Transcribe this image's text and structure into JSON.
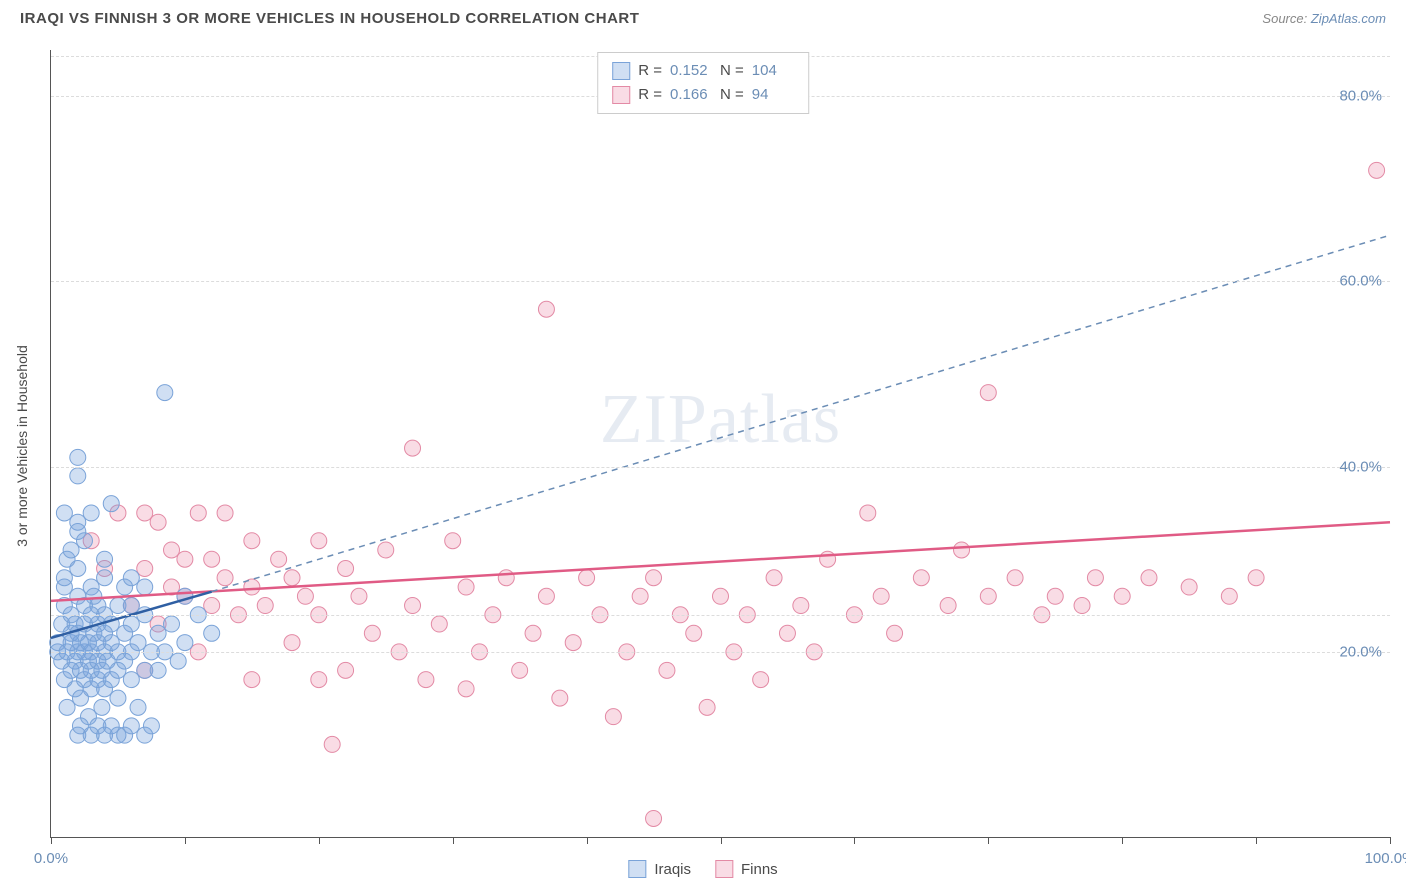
{
  "header": {
    "title": "IRAQI VS FINNISH 3 OR MORE VEHICLES IN HOUSEHOLD CORRELATION CHART",
    "source_label": "Source:",
    "source_name": "ZipAtlas.com"
  },
  "chart": {
    "type": "scatter",
    "ylabel": "3 or more Vehicles in Household",
    "watermark": "ZIPatlas",
    "xlim": [
      0,
      100
    ],
    "ylim": [
      0,
      85
    ],
    "yticks": [
      {
        "value": 20,
        "label": "20.0%"
      },
      {
        "value": 40,
        "label": "40.0%"
      },
      {
        "value": 60,
        "label": "60.0%"
      },
      {
        "value": 80,
        "label": "80.0%"
      }
    ],
    "y_grid_extra": [
      24
    ],
    "xtick_positions": [
      0,
      10,
      20,
      30,
      40,
      50,
      60,
      70,
      80,
      90,
      100
    ],
    "xtick_labels": {
      "0": "0.0%",
      "100": "100.0%"
    },
    "colors": {
      "iraqi_fill": "rgba(121,163,220,0.35)",
      "iraqi_stroke": "#7aa3d8",
      "finn_fill": "rgba(236,140,168,0.30)",
      "finn_stroke": "#e38aa5",
      "iraqi_line": "#2f5fa3",
      "iraqi_line_dash": "#6b8db5",
      "finn_line": "#e05b85",
      "grid": "#dcdcdc",
      "axis": "#555555",
      "tick_text": "#6b8db5",
      "text": "#4a4a4a",
      "bg": "#ffffff"
    },
    "marker_radius": 8,
    "legend_stats": [
      {
        "series": "iraqi",
        "R": "0.152",
        "N": "104"
      },
      {
        "series": "finn",
        "R": "0.166",
        "N": "94"
      }
    ],
    "legend_bottom": [
      {
        "series": "iraqi",
        "label": "Iraqis"
      },
      {
        "series": "finn",
        "label": "Finns"
      }
    ],
    "trend_lines": {
      "iraqi_solid": {
        "x1": 0,
        "y1": 21.5,
        "x2": 12,
        "y2": 26.5
      },
      "iraqi_dashed": {
        "x1": 12,
        "y1": 26.5,
        "x2": 100,
        "y2": 65
      },
      "finn_solid": {
        "x1": 0,
        "y1": 25.5,
        "x2": 100,
        "y2": 34
      }
    },
    "series": {
      "iraqi": [
        [
          0.5,
          20
        ],
        [
          0.5,
          21
        ],
        [
          0.8,
          19
        ],
        [
          0.8,
          23
        ],
        [
          1,
          17
        ],
        [
          1,
          25
        ],
        [
          1,
          27
        ],
        [
          1,
          28
        ],
        [
          1.2,
          20
        ],
        [
          1.2,
          14
        ],
        [
          1.2,
          30
        ],
        [
          1.5,
          18
        ],
        [
          1.5,
          22
        ],
        [
          1.5,
          24
        ],
        [
          1.5,
          21
        ],
        [
          1.8,
          16
        ],
        [
          1.8,
          19
        ],
        [
          1.8,
          23
        ],
        [
          2,
          11
        ],
        [
          2,
          20
        ],
        [
          2,
          22
        ],
        [
          2,
          26
        ],
        [
          2,
          29
        ],
        [
          2,
          34
        ],
        [
          2,
          41
        ],
        [
          2,
          39
        ],
        [
          2.2,
          12
        ],
        [
          2.2,
          15
        ],
        [
          2.2,
          18
        ],
        [
          2.2,
          21
        ],
        [
          2.5,
          17
        ],
        [
          2.5,
          20
        ],
        [
          2.5,
          23
        ],
        [
          2.5,
          25
        ],
        [
          2.5,
          32
        ],
        [
          2.8,
          13
        ],
        [
          2.8,
          19
        ],
        [
          2.8,
          21
        ],
        [
          3,
          11
        ],
        [
          3,
          16
        ],
        [
          3,
          18
        ],
        [
          3,
          20
        ],
        [
          3,
          24
        ],
        [
          3,
          27
        ],
        [
          3.2,
          22
        ],
        [
          3.2,
          26
        ],
        [
          3.5,
          12
        ],
        [
          3.5,
          17
        ],
        [
          3.5,
          19
        ],
        [
          3.5,
          21
        ],
        [
          3.5,
          23
        ],
        [
          3.5,
          25
        ],
        [
          3.8,
          14
        ],
        [
          3.8,
          18
        ],
        [
          4,
          11
        ],
        [
          4,
          16
        ],
        [
          4,
          20
        ],
        [
          4,
          22
        ],
        [
          4,
          24
        ],
        [
          4,
          30
        ],
        [
          4.2,
          19
        ],
        [
          4.5,
          12
        ],
        [
          4.5,
          17
        ],
        [
          4.5,
          21
        ],
        [
          4.5,
          23
        ],
        [
          4.5,
          36
        ],
        [
          5,
          11
        ],
        [
          5,
          15
        ],
        [
          5,
          18
        ],
        [
          5,
          20
        ],
        [
          5,
          25
        ],
        [
          5.5,
          11
        ],
        [
          5.5,
          19
        ],
        [
          5.5,
          22
        ],
        [
          6,
          12
        ],
        [
          6,
          17
        ],
        [
          6,
          20
        ],
        [
          6,
          23
        ],
        [
          6,
          25
        ],
        [
          6.5,
          14
        ],
        [
          6.5,
          21
        ],
        [
          7,
          11
        ],
        [
          7,
          18
        ],
        [
          7,
          24
        ],
        [
          7.5,
          12
        ],
        [
          7.5,
          20
        ],
        [
          8,
          18
        ],
        [
          8,
          22
        ],
        [
          8.5,
          20
        ],
        [
          8.5,
          48
        ],
        [
          9,
          23
        ],
        [
          9.5,
          19
        ],
        [
          10,
          21
        ],
        [
          10,
          26
        ],
        [
          11,
          24
        ],
        [
          12,
          22
        ],
        [
          3,
          35
        ],
        [
          2,
          33
        ],
        [
          1.5,
          31
        ],
        [
          4,
          28
        ],
        [
          5.5,
          27
        ],
        [
          1,
          35
        ],
        [
          6,
          28
        ],
        [
          7,
          27
        ]
      ],
      "finn": [
        [
          3,
          32
        ],
        [
          4,
          29
        ],
        [
          5,
          35
        ],
        [
          6,
          25
        ],
        [
          7,
          29
        ],
        [
          7,
          35
        ],
        [
          8,
          23
        ],
        [
          8,
          34
        ],
        [
          9,
          27
        ],
        [
          9,
          31
        ],
        [
          10,
          26
        ],
        [
          10,
          30
        ],
        [
          11,
          20
        ],
        [
          11,
          35
        ],
        [
          12,
          25
        ],
        [
          12,
          30
        ],
        [
          13,
          28
        ],
        [
          13,
          35
        ],
        [
          14,
          24
        ],
        [
          15,
          32
        ],
        [
          15,
          27
        ],
        [
          16,
          25
        ],
        [
          17,
          30
        ],
        [
          18,
          21
        ],
        [
          18,
          28
        ],
        [
          19,
          26
        ],
        [
          20,
          17
        ],
        [
          20,
          24
        ],
        [
          20,
          32
        ],
        [
          21,
          10
        ],
        [
          22,
          18
        ],
        [
          22,
          29
        ],
        [
          23,
          26
        ],
        [
          24,
          22
        ],
        [
          25,
          31
        ],
        [
          26,
          20
        ],
        [
          27,
          42
        ],
        [
          27,
          25
        ],
        [
          28,
          17
        ],
        [
          29,
          23
        ],
        [
          30,
          32
        ],
        [
          31,
          27
        ],
        [
          32,
          20
        ],
        [
          33,
          24
        ],
        [
          34,
          28
        ],
        [
          35,
          18
        ],
        [
          36,
          22
        ],
        [
          37,
          57
        ],
        [
          37,
          26
        ],
        [
          38,
          15
        ],
        [
          39,
          21
        ],
        [
          40,
          28
        ],
        [
          41,
          24
        ],
        [
          42,
          13
        ],
        [
          43,
          20
        ],
        [
          44,
          26
        ],
        [
          45,
          2
        ],
        [
          45,
          28
        ],
        [
          46,
          18
        ],
        [
          47,
          24
        ],
        [
          48,
          22
        ],
        [
          49,
          14
        ],
        [
          50,
          26
        ],
        [
          51,
          20
        ],
        [
          52,
          24
        ],
        [
          53,
          17
        ],
        [
          54,
          28
        ],
        [
          55,
          22
        ],
        [
          56,
          25
        ],
        [
          57,
          20
        ],
        [
          58,
          30
        ],
        [
          60,
          24
        ],
        [
          61,
          35
        ],
        [
          62,
          26
        ],
        [
          63,
          22
        ],
        [
          65,
          28
        ],
        [
          67,
          25
        ],
        [
          68,
          31
        ],
        [
          70,
          48
        ],
        [
          70,
          26
        ],
        [
          72,
          28
        ],
        [
          74,
          24
        ],
        [
          75,
          26
        ],
        [
          77,
          25
        ],
        [
          78,
          28
        ],
        [
          80,
          26
        ],
        [
          82,
          28
        ],
        [
          85,
          27
        ],
        [
          88,
          26
        ],
        [
          90,
          28
        ],
        [
          7,
          18
        ],
        [
          15,
          17
        ],
        [
          31,
          16
        ],
        [
          99,
          72
        ]
      ]
    }
  }
}
